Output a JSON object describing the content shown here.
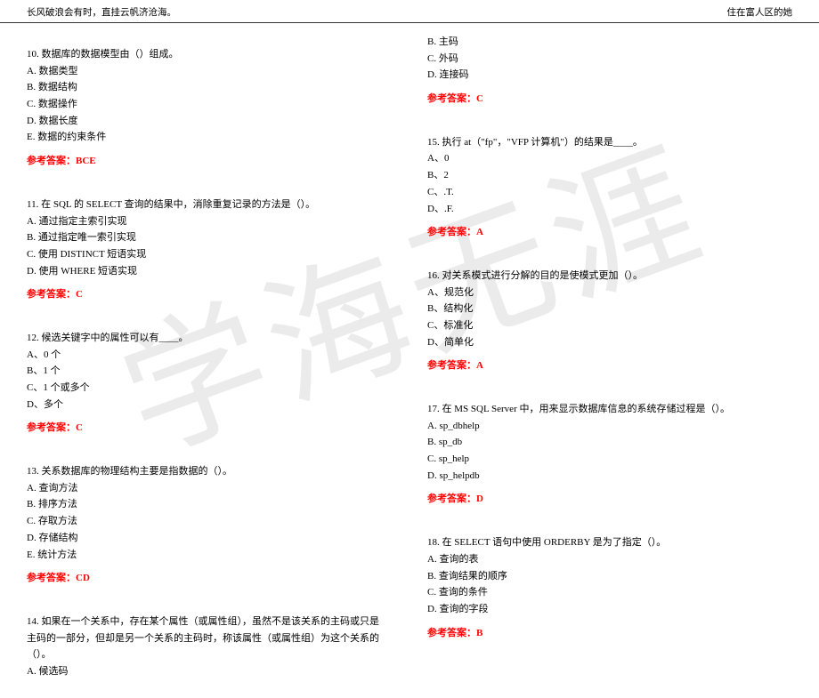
{
  "header": {
    "left": "长风破浪会有时，直挂云帆济沧海。",
    "right": "住在富人区的她"
  },
  "watermark_text": "学海无涯",
  "left_column": {
    "q10": {
      "text": "10. 数据库的数据模型由（）组成。",
      "a": "A. 数据类型",
      "b": "B. 数据结构",
      "c": "C. 数据操作",
      "d": "D. 数据长度",
      "e": "E. 数据的约束条件",
      "answer": "参考答案：BCE"
    },
    "q11": {
      "text": "11. 在 SQL 的 SELECT 查询的结果中，消除重复记录的方法是（）。",
      "a": "A. 通过指定主索引实现",
      "b": "B. 通过指定唯一索引实现",
      "c": "C. 使用 DISTINCT 短语实现",
      "d": "D. 使用 WHERE 短语实现",
      "answer": "参考答案：C"
    },
    "q12": {
      "text": "12. 候选关键字中的属性可以有____。",
      "a": "A、0 个",
      "b": "B、1 个",
      "c": "C、1 个或多个",
      "d": "D、多个",
      "answer": "参考答案：C"
    },
    "q13": {
      "text": "13. 关系数据库的物理结构主要是指数据的（）。",
      "a": "A. 查询方法",
      "b": "B. 排序方法",
      "c": "C. 存取方法",
      "d": "D. 存储结构",
      "e": "E. 统计方法",
      "answer": "参考答案：CD"
    },
    "q14": {
      "text": "14. 如果在一个关系中，存在某个属性（或属性组），虽然不是该关系的主码或只是主码的一部分，但却是另一个关系的主码时，称该属性（或属性组）为这个关系的（）。",
      "a": "A. 候选码"
    }
  },
  "right_column": {
    "q14_cont": {
      "b": "B. 主码",
      "c": "C. 外码",
      "d": "D. 连接码",
      "answer": "参考答案：C"
    },
    "q15": {
      "text": "15. 执行 at（\"fp\"，\"VFP 计算机\"）的结果是____。",
      "a": "A、0",
      "b": "B、2",
      "c": "C、.T.",
      "d": "D、.F.",
      "answer": "参考答案：A"
    },
    "q16": {
      "text": "16. 对关系模式进行分解的目的是使模式更加（）。",
      "a": "A、规范化",
      "b": "B、结构化",
      "c": "C、标准化",
      "d": "D、简单化",
      "answer": "参考答案：A"
    },
    "q17": {
      "text": "17. 在 MS SQL Server 中，用来显示数据库信息的系统存储过程是（）。",
      "a": "A. sp_dbhelp",
      "b": "B. sp_db",
      "c": "C. sp_help",
      "d": "D. sp_helpdb",
      "answer": "参考答案：D"
    },
    "q18": {
      "text": "18. 在 SELECT 语句中使用 ORDERBY 是为了指定（）。",
      "a": "A. 查询的表",
      "b": "B. 查询结果的顺序",
      "c": "C. 查询的条件",
      "d": "D. 查询的字段",
      "answer": "参考答案：B"
    }
  }
}
